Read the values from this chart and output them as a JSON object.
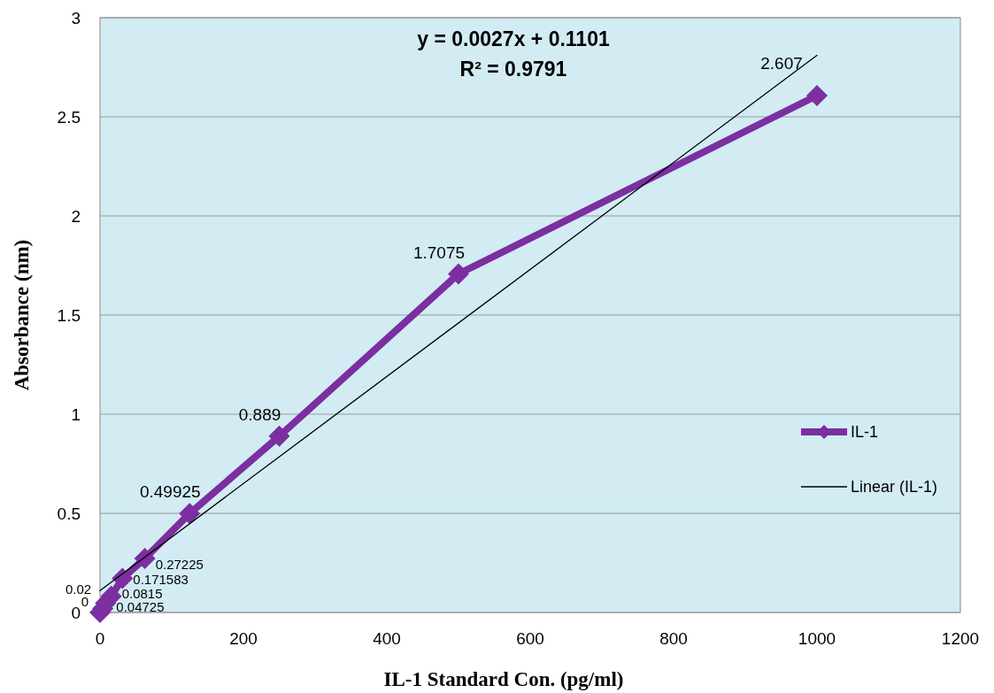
{
  "chart_data": {
    "type": "line",
    "xlabel": "IL-1 Standard Con. (pg/ml)",
    "ylabel": "Absorbance (nm)",
    "xlim": [
      0,
      1200
    ],
    "xticks": [
      0,
      200,
      400,
      600,
      800,
      1000,
      1200
    ],
    "ylim": [
      0,
      3
    ],
    "yticks": [
      0,
      0.5,
      1,
      1.5,
      2,
      2.5,
      3
    ],
    "grid": "y",
    "legend": "right",
    "annotations": [
      "y = 0.0027x + 0.1101",
      "R² = 0.9791"
    ],
    "series": [
      {
        "name": "IL-1",
        "color": "#7b2fa0",
        "marker": "diamond",
        "data_labels": true,
        "x": [
          0,
          3.9,
          7.8,
          15.6,
          31.25,
          62.5,
          125,
          250,
          500,
          1000
        ],
        "values": [
          0,
          0.02,
          0.04725,
          0.0815,
          0.171583,
          0.27225,
          0.49925,
          0.889,
          1.7075,
          2.607
        ]
      },
      {
        "name": "Linear (IL-1)",
        "type": "line",
        "color": "#000000",
        "marker": "none",
        "x": [
          0,
          1000
        ],
        "values": [
          0.1101,
          2.8101
        ]
      }
    ]
  }
}
